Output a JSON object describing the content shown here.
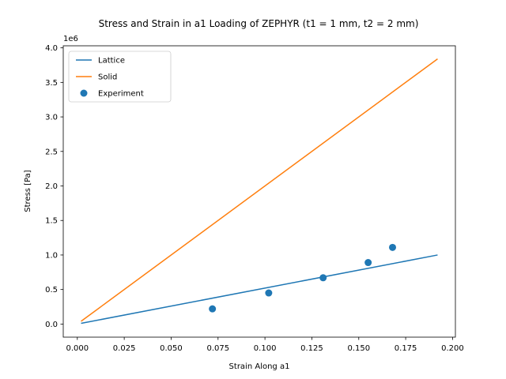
{
  "chart_data": {
    "type": "line",
    "title": "Stress and Strain in a1 Loading of ZEPHYR (t1 = 1 mm, t2 = 2 mm)",
    "xlabel": "Strain Along a1",
    "ylabel": "Stress [Pa]",
    "y_offset_label": "1e6",
    "xlim": [
      -0.0075,
      0.2015
    ],
    "ylim": [
      -190000,
      4030000
    ],
    "x_ticks": [
      0.0,
      0.025,
      0.05,
      0.075,
      0.1,
      0.125,
      0.15,
      0.175,
      0.2
    ],
    "x_tick_labels": [
      "0.000",
      "0.025",
      "0.050",
      "0.075",
      "0.100",
      "0.125",
      "0.150",
      "0.175",
      "0.200"
    ],
    "y_ticks": [
      0,
      500000,
      1000000,
      1500000,
      2000000,
      2500000,
      3000000,
      3500000,
      4000000
    ],
    "y_tick_labels": [
      "0.0",
      "0.5",
      "1.0",
      "1.5",
      "2.0",
      "2.5",
      "3.0",
      "3.5",
      "4.0"
    ],
    "grid": false,
    "legend_position": "top-left",
    "series": [
      {
        "name": "Lattice",
        "kind": "line",
        "color": "#1f77b4",
        "x": [
          0.002,
          0.192
        ],
        "y": [
          10000,
          1000000
        ]
      },
      {
        "name": "Solid",
        "kind": "line",
        "color": "#ff7f0e",
        "x": [
          0.002,
          0.192
        ],
        "y": [
          40000,
          3840000
        ]
      },
      {
        "name": "Experiment",
        "kind": "scatter",
        "color": "#1f77b4",
        "x": [
          0.072,
          0.102,
          0.131,
          0.155,
          0.168
        ],
        "y": [
          220000,
          450000,
          670000,
          890000,
          1110000
        ]
      }
    ]
  }
}
